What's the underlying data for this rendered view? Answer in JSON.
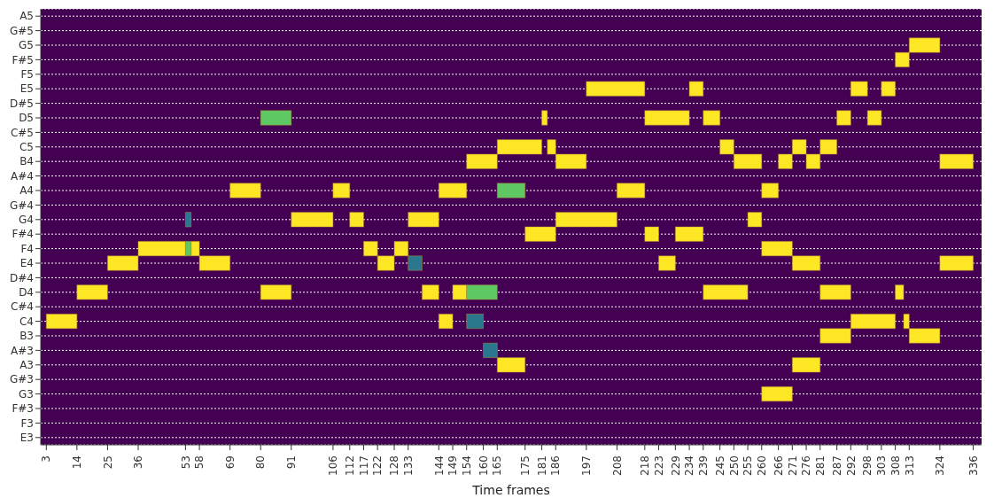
{
  "chart_data": {
    "type": "bar",
    "orientation": "horizontal",
    "xlabel": "Time frames",
    "categories": [
      "A5",
      "G#5",
      "G5",
      "F#5",
      "F5",
      "E5",
      "D#5",
      "D5",
      "C#5",
      "C5",
      "B4",
      "A#4",
      "A4",
      "G#4",
      "G4",
      "F#4",
      "F4",
      "E4",
      "D#4",
      "D4",
      "C#4",
      "C4",
      "B3",
      "A#3",
      "A3",
      "G#3",
      "G3",
      "F#3",
      "F3",
      "E3"
    ],
    "xlim": [
      1,
      339
    ],
    "xticks": [
      3,
      14,
      25,
      36,
      53,
      58,
      69,
      80,
      91,
      106,
      112,
      117,
      122,
      128,
      133,
      144,
      149,
      154,
      160,
      165,
      175,
      181,
      186,
      197,
      208,
      218,
      223,
      229,
      234,
      239,
      245,
      250,
      255,
      260,
      266,
      271,
      276,
      281,
      287,
      292,
      298,
      303,
      308,
      313,
      324,
      336
    ],
    "grid": "y",
    "series": [
      {
        "color": "#fde725",
        "base": [
          null,
          null,
          313,
          308,
          null,
          197,
          null,
          181,
          null,
          165,
          154,
          null,
          69,
          null,
          91,
          175,
          36,
          25,
          null,
          14,
          null,
          3,
          281,
          null,
          165,
          null,
          260,
          null,
          null,
          null
        ],
        "values": [
          null,
          null,
          11,
          5,
          null,
          21,
          null,
          2,
          null,
          16,
          11,
          null,
          11,
          null,
          15,
          11,
          17,
          11,
          null,
          11,
          null,
          11,
          11,
          null,
          10,
          null,
          11,
          null,
          null,
          null
        ]
      },
      {
        "color": "#fde725",
        "base": [
          null,
          null,
          null,
          null,
          null,
          234,
          null,
          218,
          null,
          183,
          186,
          null,
          106,
          null,
          112,
          218,
          55,
          58,
          null,
          80,
          null,
          144,
          313,
          null,
          271,
          null,
          null,
          null,
          null,
          null
        ],
        "values": [
          null,
          null,
          null,
          null,
          null,
          5,
          null,
          16,
          null,
          3,
          11,
          null,
          6,
          null,
          5,
          5,
          3,
          11,
          null,
          11,
          null,
          5,
          11,
          null,
          10,
          null,
          null,
          null,
          null,
          null
        ]
      },
      {
        "color": "#fde725",
        "base": [
          null,
          null,
          null,
          null,
          null,
          292,
          null,
          239,
          null,
          245,
          250,
          null,
          144,
          null,
          133,
          229,
          117,
          122,
          null,
          138,
          null,
          292,
          null,
          null,
          null,
          null,
          null,
          null,
          null,
          null
        ],
        "values": [
          null,
          null,
          null,
          null,
          null,
          6,
          null,
          6,
          null,
          5,
          10,
          null,
          10,
          null,
          11,
          10,
          5,
          6,
          null,
          6,
          null,
          16,
          null,
          null,
          null,
          null,
          null,
          null,
          null,
          null
        ]
      },
      {
        "color": "#fde725",
        "base": [
          null,
          null,
          null,
          null,
          null,
          303,
          null,
          287,
          null,
          271,
          266,
          null,
          208,
          null,
          186,
          null,
          128,
          223,
          null,
          149,
          null,
          311,
          null,
          null,
          null,
          null,
          null,
          null,
          null,
          null
        ],
        "values": [
          null,
          null,
          null,
          null,
          null,
          5,
          null,
          5,
          null,
          5,
          5,
          null,
          10,
          null,
          22,
          null,
          5,
          6,
          null,
          5,
          null,
          2,
          null,
          null,
          null,
          null,
          null,
          null,
          null,
          null
        ]
      },
      {
        "color": "#fde725",
        "base": [
          null,
          null,
          null,
          null,
          null,
          null,
          null,
          298,
          null,
          281,
          276,
          null,
          260,
          null,
          255,
          null,
          260,
          271,
          null,
          239,
          null,
          null,
          null,
          null,
          null,
          null,
          null,
          null,
          null,
          null
        ],
        "values": [
          null,
          null,
          null,
          null,
          null,
          null,
          null,
          5,
          null,
          6,
          5,
          null,
          6,
          null,
          5,
          null,
          11,
          10,
          null,
          16,
          null,
          null,
          null,
          null,
          null,
          null,
          null,
          null,
          null,
          null
        ]
      },
      {
        "color": "#fde725",
        "base": [
          null,
          null,
          null,
          null,
          null,
          null,
          null,
          null,
          null,
          null,
          324,
          null,
          null,
          null,
          null,
          null,
          null,
          324,
          null,
          281,
          null,
          null,
          null,
          null,
          null,
          null,
          null,
          null,
          null,
          null
        ],
        "values": [
          null,
          null,
          null,
          null,
          null,
          null,
          null,
          null,
          null,
          null,
          12,
          null,
          null,
          null,
          null,
          null,
          null,
          12,
          null,
          11,
          null,
          null,
          null,
          null,
          null,
          null,
          null,
          null,
          null,
          null
        ]
      },
      {
        "color": "#fde725",
        "base": [
          null,
          null,
          null,
          null,
          null,
          null,
          null,
          null,
          null,
          null,
          null,
          null,
          null,
          null,
          null,
          null,
          null,
          null,
          null,
          308,
          null,
          null,
          null,
          null,
          null,
          null,
          null,
          null,
          null,
          null
        ],
        "values": [
          null,
          null,
          null,
          null,
          null,
          null,
          null,
          null,
          null,
          null,
          null,
          null,
          null,
          null,
          null,
          null,
          null,
          null,
          null,
          3,
          null,
          null,
          null,
          null,
          null,
          null,
          null,
          null,
          null,
          null
        ]
      },
      {
        "color": "#5ec962",
        "base": [
          null,
          null,
          null,
          null,
          null,
          null,
          null,
          80,
          null,
          null,
          null,
          null,
          165,
          null,
          null,
          null,
          53,
          null,
          null,
          154,
          null,
          null,
          null,
          null,
          null,
          null,
          null,
          null,
          null,
          null
        ],
        "values": [
          null,
          null,
          null,
          null,
          null,
          null,
          null,
          11,
          null,
          null,
          null,
          null,
          10,
          null,
          null,
          null,
          2,
          null,
          null,
          11,
          null,
          null,
          null,
          null,
          null,
          null,
          null,
          null,
          null,
          null
        ]
      },
      {
        "color": "#2a788e",
        "base": [
          null,
          null,
          null,
          null,
          null,
          null,
          null,
          null,
          null,
          null,
          null,
          null,
          null,
          null,
          53,
          null,
          null,
          133,
          null,
          null,
          null,
          154,
          null,
          160,
          null,
          null,
          null,
          null,
          null,
          null
        ],
        "values": [
          null,
          null,
          null,
          null,
          null,
          null,
          null,
          null,
          null,
          null,
          null,
          null,
          null,
          null,
          2,
          null,
          null,
          5,
          null,
          null,
          null,
          6,
          null,
          5,
          null,
          null,
          null,
          null,
          null,
          null
        ]
      }
    ]
  }
}
